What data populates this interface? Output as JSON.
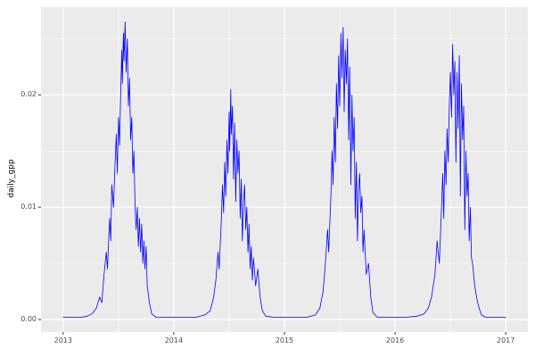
{
  "chart_data": {
    "type": "line",
    "title": "",
    "xlabel": "",
    "ylabel": "daily_gpp",
    "xlim": [
      2013,
      2017
    ],
    "ylim": [
      0,
      0.0265
    ],
    "grid": true,
    "legend": "none",
    "x_ticks": {
      "values": [
        2013,
        2014,
        2015,
        2016,
        2017
      ],
      "labels": [
        "2013",
        "2014",
        "2015",
        "2016",
        "2017"
      ]
    },
    "x_minor_ticks": [
      2013.5,
      2014.5,
      2015.5,
      2016.5
    ],
    "y_ticks": {
      "values": [
        0,
        0.01,
        0.02
      ],
      "labels": [
        "0.00",
        "0.01",
        "0.02"
      ]
    },
    "y_minor_ticks": [
      0.005,
      0.015,
      0.025
    ],
    "theme": {
      "plot_bg": "#FFFFFF",
      "panel_bg": "#EBEBEB",
      "grid_color": "#FFFFFF",
      "line_color": "#0000FF",
      "axis_text_color": "#4D4D4D",
      "tick_color": "#333333"
    },
    "series": [
      {
        "name": "daily_gpp",
        "points": [
          [
            2013.0,
            0.0002
          ],
          [
            2013.08,
            0.0002
          ],
          [
            2013.16,
            0.0002
          ],
          [
            2013.22,
            0.0003
          ],
          [
            2013.26,
            0.0005
          ],
          [
            2013.3,
            0.001
          ],
          [
            2013.33,
            0.002
          ],
          [
            2013.35,
            0.0015
          ],
          [
            2013.37,
            0.004
          ],
          [
            2013.39,
            0.006
          ],
          [
            2013.4,
            0.0045
          ],
          [
            2013.42,
            0.009
          ],
          [
            2013.43,
            0.007
          ],
          [
            2013.44,
            0.012
          ],
          [
            2013.455,
            0.01
          ],
          [
            2013.47,
            0.014
          ],
          [
            2013.48,
            0.0165
          ],
          [
            2013.49,
            0.013
          ],
          [
            2013.5,
            0.018
          ],
          [
            2013.51,
            0.0155
          ],
          [
            2013.52,
            0.02
          ],
          [
            2013.53,
            0.024
          ],
          [
            2013.535,
            0.021
          ],
          [
            2013.545,
            0.0255
          ],
          [
            2013.55,
            0.023
          ],
          [
            2013.56,
            0.0265
          ],
          [
            2013.57,
            0.022
          ],
          [
            2013.58,
            0.025
          ],
          [
            2013.59,
            0.019
          ],
          [
            2013.6,
            0.0215
          ],
          [
            2013.61,
            0.016
          ],
          [
            2013.62,
            0.018
          ],
          [
            2013.63,
            0.013
          ],
          [
            2013.64,
            0.015
          ],
          [
            2013.65,
            0.01
          ],
          [
            2013.66,
            0.008
          ],
          [
            2013.67,
            0.01
          ],
          [
            2013.68,
            0.0065
          ],
          [
            2013.69,
            0.009
          ],
          [
            2013.7,
            0.006
          ],
          [
            2013.71,
            0.0085
          ],
          [
            2013.72,
            0.005
          ],
          [
            2013.73,
            0.007
          ],
          [
            2013.74,
            0.0045
          ],
          [
            2013.75,
            0.0065
          ],
          [
            2013.76,
            0.003
          ],
          [
            2013.78,
            0.0015
          ],
          [
            2013.8,
            0.0005
          ],
          [
            2013.84,
            0.0002
          ],
          [
            2013.92,
            0.0002
          ],
          [
            2014.0,
            0.0002
          ],
          [
            2014.1,
            0.0002
          ],
          [
            2014.2,
            0.0002
          ],
          [
            2014.28,
            0.0004
          ],
          [
            2014.33,
            0.0008
          ],
          [
            2014.36,
            0.002
          ],
          [
            2014.38,
            0.0035
          ],
          [
            2014.4,
            0.006
          ],
          [
            2014.41,
            0.0045
          ],
          [
            2014.43,
            0.009
          ],
          [
            2014.44,
            0.012
          ],
          [
            2014.45,
            0.0095
          ],
          [
            2014.46,
            0.014
          ],
          [
            2014.47,
            0.011
          ],
          [
            2014.48,
            0.016
          ],
          [
            2014.49,
            0.013
          ],
          [
            2014.5,
            0.0185
          ],
          [
            2014.505,
            0.015
          ],
          [
            2014.515,
            0.0205
          ],
          [
            2014.52,
            0.0165
          ],
          [
            2014.53,
            0.019
          ],
          [
            2014.54,
            0.0125
          ],
          [
            2014.55,
            0.0175
          ],
          [
            2014.56,
            0.0105
          ],
          [
            2014.57,
            0.016
          ],
          [
            2014.58,
            0.013
          ],
          [
            2014.59,
            0.015
          ],
          [
            2014.6,
            0.009
          ],
          [
            2014.61,
            0.0125
          ],
          [
            2014.62,
            0.007
          ],
          [
            2014.63,
            0.0105
          ],
          [
            2014.64,
            0.012
          ],
          [
            2014.65,
            0.008
          ],
          [
            2014.66,
            0.01
          ],
          [
            2014.67,
            0.006
          ],
          [
            2014.68,
            0.0085
          ],
          [
            2014.69,
            0.0045
          ],
          [
            2014.7,
            0.0065
          ],
          [
            2014.71,
            0.0035
          ],
          [
            2014.72,
            0.0055
          ],
          [
            2014.74,
            0.003
          ],
          [
            2014.76,
            0.0045
          ],
          [
            2014.78,
            0.002
          ],
          [
            2014.8,
            0.0008
          ],
          [
            2014.83,
            0.0003
          ],
          [
            2014.9,
            0.0002
          ],
          [
            2015.0,
            0.0002
          ],
          [
            2015.1,
            0.0002
          ],
          [
            2015.2,
            0.0002
          ],
          [
            2015.28,
            0.0004
          ],
          [
            2015.32,
            0.001
          ],
          [
            2015.35,
            0.0025
          ],
          [
            2015.37,
            0.005
          ],
          [
            2015.39,
            0.008
          ],
          [
            2015.4,
            0.006
          ],
          [
            2015.42,
            0.011
          ],
          [
            2015.43,
            0.015
          ],
          [
            2015.44,
            0.012
          ],
          [
            2015.45,
            0.018
          ],
          [
            2015.46,
            0.014
          ],
          [
            2015.47,
            0.021
          ],
          [
            2015.48,
            0.017
          ],
          [
            2015.49,
            0.0235
          ],
          [
            2015.5,
            0.019
          ],
          [
            2015.51,
            0.0255
          ],
          [
            2015.52,
            0.0215
          ],
          [
            2015.53,
            0.026
          ],
          [
            2015.54,
            0.0185
          ],
          [
            2015.55,
            0.024
          ],
          [
            2015.56,
            0.021
          ],
          [
            2015.57,
            0.025
          ],
          [
            2015.58,
            0.016
          ],
          [
            2015.59,
            0.0225
          ],
          [
            2015.6,
            0.012
          ],
          [
            2015.61,
            0.02
          ],
          [
            2015.62,
            0.015
          ],
          [
            2015.63,
            0.018
          ],
          [
            2015.64,
            0.009
          ],
          [
            2015.65,
            0.014
          ],
          [
            2015.66,
            0.007
          ],
          [
            2015.67,
            0.0115
          ],
          [
            2015.68,
            0.013
          ],
          [
            2015.69,
            0.0095
          ],
          [
            2015.7,
            0.011
          ],
          [
            2015.71,
            0.006
          ],
          [
            2015.72,
            0.008
          ],
          [
            2015.74,
            0.004
          ],
          [
            2015.76,
            0.005
          ],
          [
            2015.78,
            0.002
          ],
          [
            2015.8,
            0.0006
          ],
          [
            2015.84,
            0.0002
          ],
          [
            2015.92,
            0.0002
          ],
          [
            2016.0,
            0.0002
          ],
          [
            2016.1,
            0.0002
          ],
          [
            2016.2,
            0.0003
          ],
          [
            2016.26,
            0.0005
          ],
          [
            2016.3,
            0.001
          ],
          [
            2016.33,
            0.002
          ],
          [
            2016.36,
            0.004
          ],
          [
            2016.38,
            0.007
          ],
          [
            2016.4,
            0.005
          ],
          [
            2016.42,
            0.01
          ],
          [
            2016.43,
            0.013
          ],
          [
            2016.44,
            0.009
          ],
          [
            2016.45,
            0.015
          ],
          [
            2016.46,
            0.012
          ],
          [
            2016.47,
            0.017
          ],
          [
            2016.48,
            0.014
          ],
          [
            2016.49,
            0.019
          ],
          [
            2016.5,
            0.022
          ],
          [
            2016.51,
            0.018
          ],
          [
            2016.52,
            0.0245
          ],
          [
            2016.53,
            0.02
          ],
          [
            2016.54,
            0.023
          ],
          [
            2016.55,
            0.014
          ],
          [
            2016.56,
            0.022
          ],
          [
            2016.57,
            0.017
          ],
          [
            2016.58,
            0.0235
          ],
          [
            2016.59,
            0.011
          ],
          [
            2016.6,
            0.021
          ],
          [
            2016.61,
            0.016
          ],
          [
            2016.62,
            0.019
          ],
          [
            2016.63,
            0.008
          ],
          [
            2016.64,
            0.015
          ],
          [
            2016.65,
            0.011
          ],
          [
            2016.66,
            0.013
          ],
          [
            2016.67,
            0.007
          ],
          [
            2016.68,
            0.01
          ],
          [
            2016.69,
            0.0055
          ],
          [
            2016.7,
            0.005
          ],
          [
            2016.72,
            0.003
          ],
          [
            2016.74,
            0.0018
          ],
          [
            2016.76,
            0.001
          ],
          [
            2016.78,
            0.0004
          ],
          [
            2016.82,
            0.0002
          ],
          [
            2016.9,
            0.0002
          ],
          [
            2017.0,
            0.0002
          ]
        ]
      }
    ]
  }
}
